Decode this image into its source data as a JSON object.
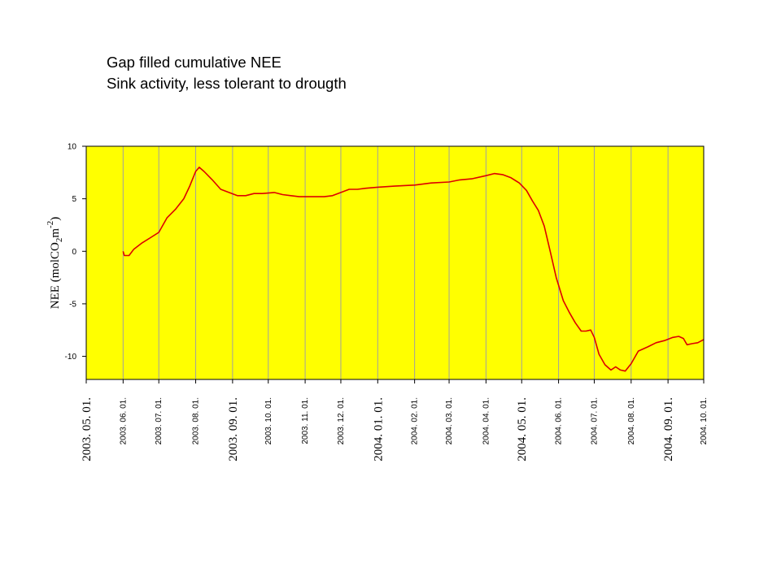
{
  "titles": {
    "line1": "Gap filled cumulative NEE",
    "line2": "Sink activity, less tolerant to drougth"
  },
  "colors": {
    "plot_background": "#ffff00",
    "series_line": "#dd0000",
    "gridline": "#a0a0a0"
  },
  "chart_data": {
    "type": "line",
    "title": "",
    "ylabel": "NEE (molCO2m-2)",
    "ylabel_parts": {
      "prefix": "NEE (molCO",
      "sub": "2",
      "mid": "m",
      "sup": "-2",
      "suffix": ")"
    },
    "xlabel": "",
    "ylim": [
      -12.2,
      10
    ],
    "yticks": [
      10,
      5,
      0,
      -5,
      -10
    ],
    "yticklabels": [
      "10",
      "5",
      "0",
      "-5",
      "-10"
    ],
    "xlim": [
      "2003-05-01",
      "2004-10-01"
    ],
    "grid": "vertical",
    "xticks": [
      {
        "date": "2003-05-01",
        "label": "2003. 05. 01.",
        "major": true
      },
      {
        "date": "2003-06-01",
        "label": "2003. 06. 01.",
        "major": false
      },
      {
        "date": "2003-07-01",
        "label": "2003. 07. 01.",
        "major": false
      },
      {
        "date": "2003-08-01",
        "label": "2003. 08. 01.",
        "major": false
      },
      {
        "date": "2003-09-01",
        "label": "2003. 09. 01.",
        "major": true
      },
      {
        "date": "2003-10-01",
        "label": "2003. 10. 01.",
        "major": false
      },
      {
        "date": "2003-11-01",
        "label": "2003. 11. 01.",
        "major": false
      },
      {
        "date": "2003-12-01",
        "label": "2003. 12. 01.",
        "major": false
      },
      {
        "date": "2004-01-01",
        "label": "2004. 01. 01.",
        "major": true
      },
      {
        "date": "2004-02-01",
        "label": "2004. 02. 01.",
        "major": false
      },
      {
        "date": "2004-03-01",
        "label": "2004. 03. 01.",
        "major": false
      },
      {
        "date": "2004-04-01",
        "label": "2004. 04. 01.",
        "major": false
      },
      {
        "date": "2004-05-01",
        "label": "2004. 05. 01.",
        "major": true
      },
      {
        "date": "2004-06-01",
        "label": "2004. 06. 01.",
        "major": false
      },
      {
        "date": "2004-07-01",
        "label": "2004. 07. 01.",
        "major": false
      },
      {
        "date": "2004-08-01",
        "label": "2004. 08. 01.",
        "major": false
      },
      {
        "date": "2004-09-01",
        "label": "2004. 09. 01.",
        "major": true
      },
      {
        "date": "2004-10-01",
        "label": "2004. 10. 01.",
        "major": false
      }
    ],
    "series": [
      {
        "points": [
          [
            "2003-06-01",
            0.0
          ],
          [
            "2003-06-02",
            -0.4
          ],
          [
            "2003-06-06",
            -0.4
          ],
          [
            "2003-06-10",
            0.2
          ],
          [
            "2003-06-17",
            0.8
          ],
          [
            "2003-06-24",
            1.3
          ],
          [
            "2003-07-01",
            1.8
          ],
          [
            "2003-07-08",
            3.2
          ],
          [
            "2003-07-15",
            4.0
          ],
          [
            "2003-07-22",
            5.0
          ],
          [
            "2003-07-27",
            6.2
          ],
          [
            "2003-08-01",
            7.6
          ],
          [
            "2003-08-04",
            8.0
          ],
          [
            "2003-08-08",
            7.6
          ],
          [
            "2003-08-15",
            6.8
          ],
          [
            "2003-08-22",
            5.9
          ],
          [
            "2003-08-29",
            5.6
          ],
          [
            "2003-09-05",
            5.3
          ],
          [
            "2003-09-12",
            5.3
          ],
          [
            "2003-09-19",
            5.5
          ],
          [
            "2003-09-26",
            5.5
          ],
          [
            "2003-10-06",
            5.6
          ],
          [
            "2003-10-13",
            5.4
          ],
          [
            "2003-10-20",
            5.3
          ],
          [
            "2003-10-27",
            5.2
          ],
          [
            "2003-11-03",
            5.2
          ],
          [
            "2003-11-10",
            5.2
          ],
          [
            "2003-11-17",
            5.2
          ],
          [
            "2003-11-24",
            5.3
          ],
          [
            "2003-12-01",
            5.6
          ],
          [
            "2003-12-08",
            5.9
          ],
          [
            "2003-12-15",
            5.9
          ],
          [
            "2003-12-22",
            6.0
          ],
          [
            "2004-01-01",
            6.1
          ],
          [
            "2004-01-15",
            6.2
          ],
          [
            "2004-02-01",
            6.3
          ],
          [
            "2004-02-15",
            6.5
          ],
          [
            "2004-03-01",
            6.6
          ],
          [
            "2004-03-10",
            6.8
          ],
          [
            "2004-03-20",
            6.9
          ],
          [
            "2004-04-01",
            7.2
          ],
          [
            "2004-04-08",
            7.4
          ],
          [
            "2004-04-15",
            7.3
          ],
          [
            "2004-04-22",
            7.0
          ],
          [
            "2004-04-29",
            6.5
          ],
          [
            "2004-05-05",
            5.8
          ],
          [
            "2004-05-10",
            4.8
          ],
          [
            "2004-05-15",
            3.9
          ],
          [
            "2004-05-20",
            2.4
          ],
          [
            "2004-05-25",
            0.0
          ],
          [
            "2004-05-30",
            -2.5
          ],
          [
            "2004-06-05",
            -4.7
          ],
          [
            "2004-06-10",
            -5.8
          ],
          [
            "2004-06-15",
            -6.8
          ],
          [
            "2004-06-20",
            -7.6
          ],
          [
            "2004-06-24",
            -7.6
          ],
          [
            "2004-06-28",
            -7.5
          ],
          [
            "2004-07-01",
            -8.2
          ],
          [
            "2004-07-05",
            -9.8
          ],
          [
            "2004-07-10",
            -10.8
          ],
          [
            "2004-07-15",
            -11.3
          ],
          [
            "2004-07-19",
            -11.0
          ],
          [
            "2004-07-23",
            -11.3
          ],
          [
            "2004-07-27",
            -11.4
          ],
          [
            "2004-08-01",
            -10.7
          ],
          [
            "2004-08-07",
            -9.5
          ],
          [
            "2004-08-15",
            -9.1
          ],
          [
            "2004-08-22",
            -8.7
          ],
          [
            "2004-08-29",
            -8.5
          ],
          [
            "2004-09-05",
            -8.2
          ],
          [
            "2004-09-10",
            -8.1
          ],
          [
            "2004-09-14",
            -8.3
          ],
          [
            "2004-09-17",
            -8.9
          ],
          [
            "2004-09-21",
            -8.8
          ],
          [
            "2004-09-26",
            -8.7
          ],
          [
            "2004-10-01",
            -8.4
          ]
        ]
      }
    ]
  }
}
